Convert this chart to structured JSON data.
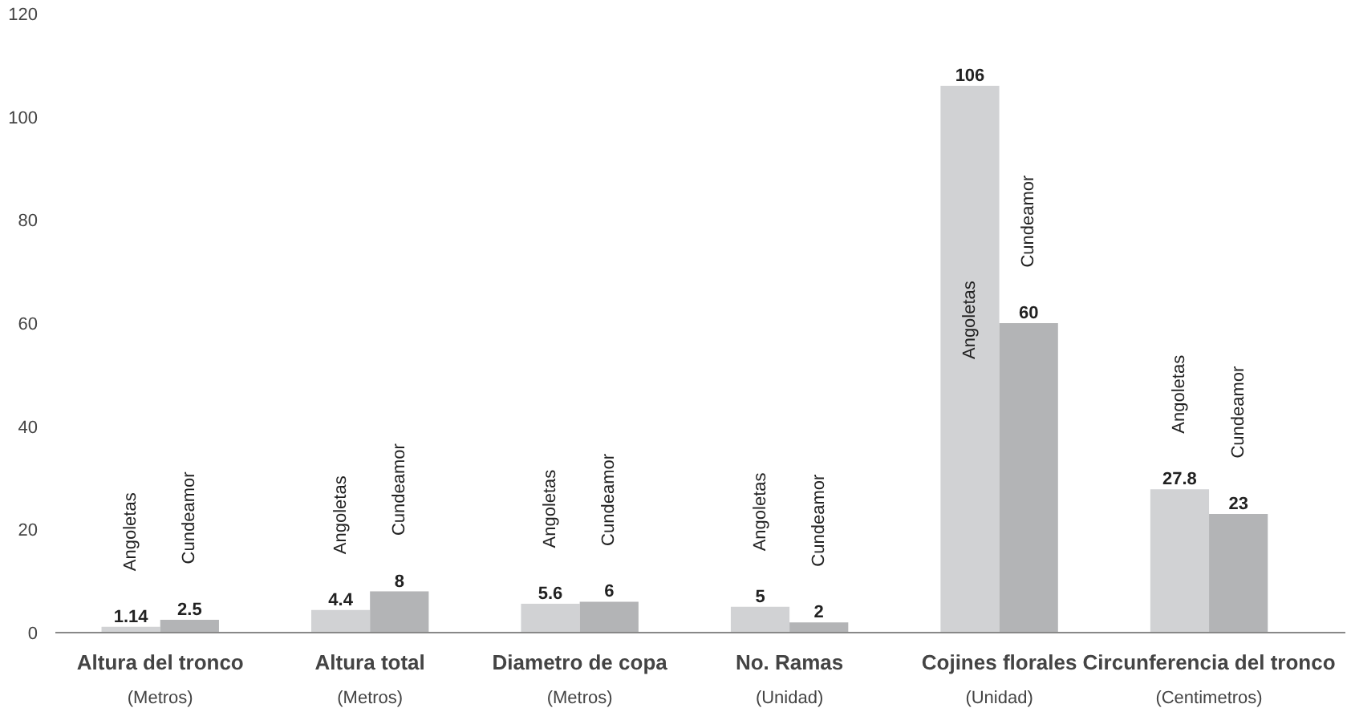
{
  "chart_data": {
    "type": "bar",
    "categories": [
      "Altura del tronco\n(Metros)",
      "Altura total\n(Metros)",
      "Diametro de copa\n(Metros)",
      "No. Ramas\n(Unidad)",
      "Cojines florales\n(Unidad)",
      "Circunferencia del tronco\n(Centimetros)"
    ],
    "series": [
      {
        "name": "Angoletas",
        "color": "#d1d2d4",
        "values": [
          1.14,
          4.4,
          5.6,
          5,
          106,
          27.8
        ]
      },
      {
        "name": "Cundeamor",
        "color": "#b3b4b6",
        "values": [
          2.5,
          8,
          6,
          2,
          60,
          23
        ]
      }
    ],
    "ylim": [
      0,
      120
    ],
    "yticks": [
      0,
      20,
      40,
      60,
      80,
      100,
      120
    ],
    "grid": false,
    "data_labels": true
  }
}
